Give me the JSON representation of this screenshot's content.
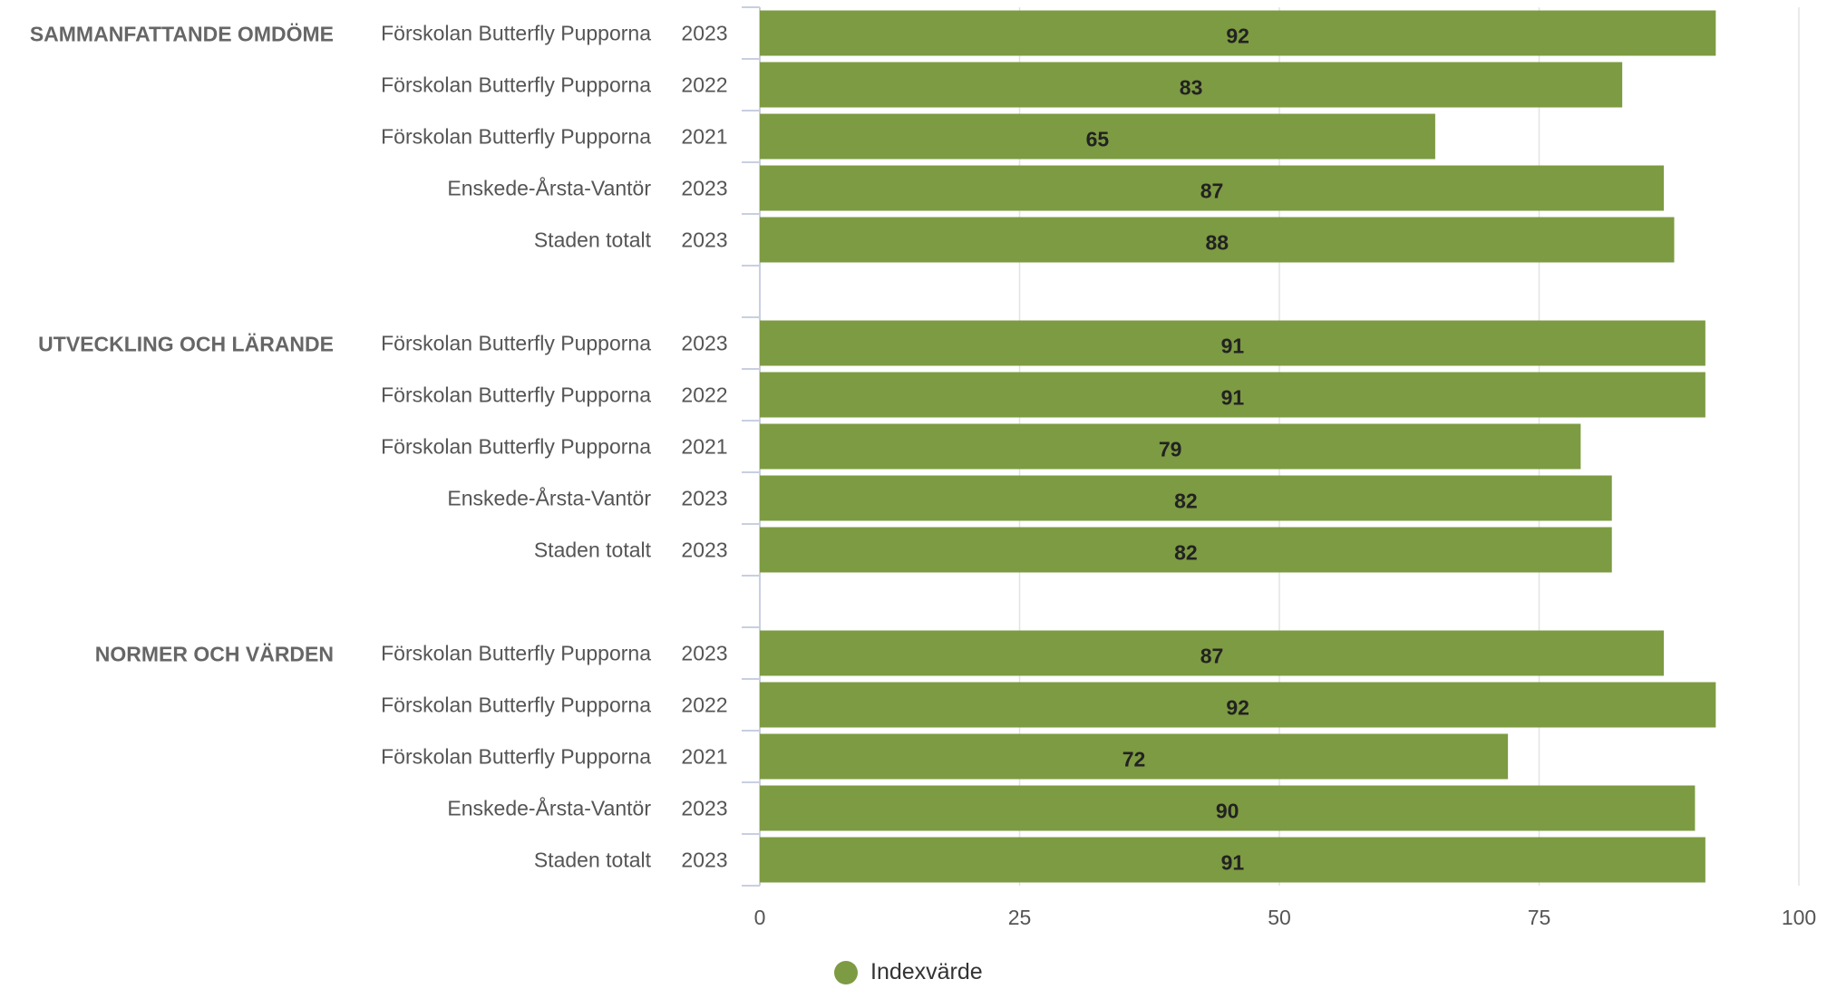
{
  "colors": {
    "bar": "#7d9b42",
    "grid": "#e3e3e3",
    "axis": "#c9cfe0",
    "label": "#555555",
    "group_label": "#666666",
    "value_label": "#222222"
  },
  "chart_data": {
    "type": "bar",
    "orientation": "horizontal",
    "xlim": [
      0,
      100
    ],
    "xticks": [
      "0",
      "25",
      "50",
      "75",
      "100"
    ],
    "grid": true,
    "legend_position": "bottom",
    "groups": [
      {
        "label": "SAMMANFATTANDE OMDÖME",
        "bars": [
          {
            "name": "Förskolan Butterfly Pupporna",
            "year": "2023",
            "value": 92
          },
          {
            "name": "Förskolan Butterfly Pupporna",
            "year": "2022",
            "value": 83
          },
          {
            "name": "Förskolan Butterfly Pupporna",
            "year": "2021",
            "value": 65
          },
          {
            "name": "Enskede-Årsta-Vantör",
            "year": "2023",
            "value": 87
          },
          {
            "name": "Staden totalt",
            "year": "2023",
            "value": 88
          }
        ]
      },
      {
        "label": "UTVECKLING OCH LÄRANDE",
        "bars": [
          {
            "name": "Förskolan Butterfly Pupporna",
            "year": "2023",
            "value": 91
          },
          {
            "name": "Förskolan Butterfly Pupporna",
            "year": "2022",
            "value": 91
          },
          {
            "name": "Förskolan Butterfly Pupporna",
            "year": "2021",
            "value": 79
          },
          {
            "name": "Enskede-Årsta-Vantör",
            "year": "2023",
            "value": 82
          },
          {
            "name": "Staden totalt",
            "year": "2023",
            "value": 82
          }
        ]
      },
      {
        "label": "NORMER OCH VÄRDEN",
        "bars": [
          {
            "name": "Förskolan Butterfly Pupporna",
            "year": "2023",
            "value": 87
          },
          {
            "name": "Förskolan Butterfly Pupporna",
            "year": "2022",
            "value": 92
          },
          {
            "name": "Förskolan Butterfly Pupporna",
            "year": "2021",
            "value": 72
          },
          {
            "name": "Enskede-Årsta-Vantör",
            "year": "2023",
            "value": 90
          },
          {
            "name": "Staden totalt",
            "year": "2023",
            "value": 91
          }
        ]
      }
    ],
    "series": [
      {
        "name": "Indexvärde"
      }
    ]
  }
}
